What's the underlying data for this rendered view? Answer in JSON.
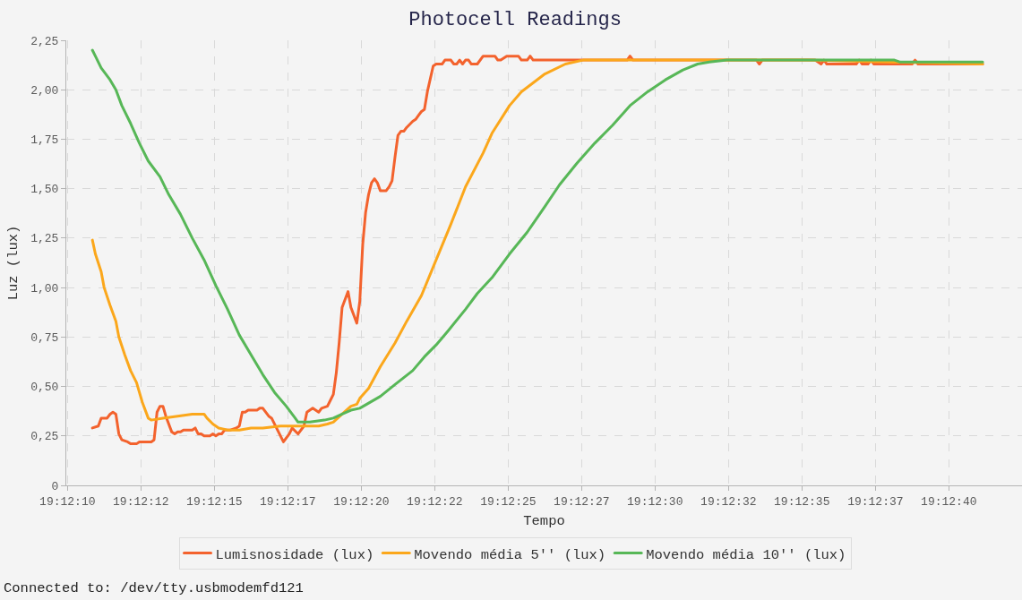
{
  "chart_data": {
    "type": "line",
    "title": "Photocell Readings",
    "xlabel": "Tempo",
    "ylabel": "Luz (lux)",
    "xlim": [
      19.202753,
      19.211789
    ],
    "xticks": [
      {
        "value": 19.202764,
        "label": "19:12:10"
      },
      {
        "value": 19.203458,
        "label": "19:12:12"
      },
      {
        "value": 19.204153,
        "label": "19:12:15"
      },
      {
        "value": 19.204847,
        "label": "19:12:17"
      },
      {
        "value": 19.205542,
        "label": "19:12:20"
      },
      {
        "value": 19.206236,
        "label": "19:12:22"
      },
      {
        "value": 19.206931,
        "label": "19:12:25"
      },
      {
        "value": 19.207625,
        "label": "19:12:27"
      },
      {
        "value": 19.208319,
        "label": "19:12:30"
      },
      {
        "value": 19.209014,
        "label": "19:12:32"
      },
      {
        "value": 19.209708,
        "label": "19:12:35"
      },
      {
        "value": 19.210403,
        "label": "19:12:37"
      },
      {
        "value": 19.211097,
        "label": "19:12:40"
      }
    ],
    "ylim": [
      0,
      2.25
    ],
    "yticks": [
      0,
      {
        "value": 0.25,
        "label": "0,25"
      },
      {
        "value": 0.5,
        "label": "0,50"
      },
      {
        "value": 0.75,
        "label": "0,75"
      },
      {
        "value": 1.0,
        "label": "1,00"
      },
      {
        "value": 1.25,
        "label": "1,25"
      },
      {
        "value": 1.5,
        "label": "1,50"
      },
      {
        "value": 1.75,
        "label": "1,75"
      },
      {
        "value": 2.0,
        "label": "2,00"
      },
      {
        "value": 2.25,
        "label": "2,25"
      }
    ],
    "grid": true,
    "legend": "bottom",
    "line_style": "solid",
    "annotations": [
      "Connected to: /dev/tty.usbmodemfd121"
    ],
    "series": [
      {
        "name": "Lumisnosidade (lux)",
        "color": "#f3622d",
        "x": [
          19.203,
          19.203056,
          19.203083,
          19.203139,
          19.203167,
          19.203194,
          19.203222,
          19.20325,
          19.203278,
          19.203333,
          19.203361,
          19.203417,
          19.203444,
          19.203556,
          19.203583,
          19.203611,
          19.203639,
          19.203667,
          19.203694,
          19.20375,
          19.203778,
          19.203806,
          19.203833,
          19.203861,
          19.203944,
          19.203972,
          19.204,
          19.204028,
          19.204056,
          19.204111,
          19.204139,
          19.204167,
          19.204194,
          19.204222,
          19.20425,
          19.204306,
          19.204361,
          19.204389,
          19.204417,
          19.204444,
          19.204472,
          19.204556,
          19.204583,
          19.204611,
          19.204667,
          19.204694,
          19.20475,
          19.204806,
          19.204861,
          19.204889,
          19.204944,
          19.205,
          19.205028,
          19.205083,
          19.205111,
          19.205139,
          19.205167,
          19.205222,
          19.20525,
          19.205278,
          19.205306,
          19.205333,
          19.205361,
          19.205417,
          19.205444,
          19.2055,
          19.205528,
          19.205556,
          19.205583,
          19.205611,
          19.205639,
          19.205667,
          19.205694,
          19.205722,
          19.205778,
          19.205806,
          19.205833,
          19.205861,
          19.205889,
          19.205917,
          19.205944,
          19.205972,
          19.206028,
          19.206056,
          19.206083,
          19.206111,
          19.206139,
          19.206167,
          19.206222,
          19.20625,
          19.206306,
          19.206333,
          19.206389,
          19.206417,
          19.206444,
          19.206472,
          19.2065,
          19.206528,
          19.206556,
          19.206583,
          19.206639,
          19.206694,
          19.206806,
          19.206833,
          19.206861,
          19.206917,
          19.207028,
          19.207056,
          19.207111,
          19.207139,
          19.207167,
          19.208056,
          19.208083,
          19.208111,
          19.209278,
          19.209306,
          19.209333,
          19.209833,
          19.209889,
          19.209917,
          19.209944,
          19.210222,
          19.21025,
          19.210278,
          19.210333,
          19.210361,
          19.210389,
          19.21075,
          19.210778,
          19.210806,
          19.211417
        ],
        "values": [
          0.29,
          0.3,
          0.34,
          0.34,
          0.36,
          0.37,
          0.36,
          0.26,
          0.23,
          0.22,
          0.21,
          0.21,
          0.22,
          0.22,
          0.23,
          0.37,
          0.4,
          0.4,
          0.35,
          0.27,
          0.26,
          0.27,
          0.27,
          0.28,
          0.28,
          0.29,
          0.26,
          0.26,
          0.25,
          0.25,
          0.26,
          0.25,
          0.26,
          0.26,
          0.28,
          0.28,
          0.29,
          0.3,
          0.37,
          0.37,
          0.38,
          0.38,
          0.39,
          0.39,
          0.35,
          0.34,
          0.28,
          0.22,
          0.26,
          0.29,
          0.26,
          0.3,
          0.37,
          0.39,
          0.38,
          0.37,
          0.39,
          0.4,
          0.43,
          0.46,
          0.57,
          0.72,
          0.9,
          0.98,
          0.9,
          0.82,
          0.93,
          1.22,
          1.38,
          1.47,
          1.53,
          1.55,
          1.53,
          1.49,
          1.49,
          1.51,
          1.54,
          1.66,
          1.77,
          1.79,
          1.79,
          1.81,
          1.84,
          1.85,
          1.87,
          1.89,
          1.9,
          1.99,
          2.12,
          2.13,
          2.13,
          2.15,
          2.15,
          2.13,
          2.13,
          2.15,
          2.13,
          2.15,
          2.15,
          2.13,
          2.13,
          2.17,
          2.17,
          2.15,
          2.15,
          2.17,
          2.17,
          2.15,
          2.15,
          2.17,
          2.15,
          2.15,
          2.17,
          2.15,
          2.15,
          2.13,
          2.15,
          2.15,
          2.13,
          2.15,
          2.13,
          2.13,
          2.15,
          2.13,
          2.13,
          2.15,
          2.13,
          2.13,
          2.15,
          2.13,
          2.13
        ]
      },
      {
        "name": "Movendo média 5'' (lux)",
        "color": "#fba71b",
        "x": [
          19.203,
          19.203028,
          19.203083,
          19.203111,
          19.203167,
          19.203222,
          19.20325,
          19.203306,
          19.203361,
          19.203417,
          19.203472,
          19.203528,
          19.203556,
          19.203667,
          19.203806,
          19.203944,
          19.204056,
          19.204083,
          19.204139,
          19.204194,
          19.204278,
          19.204389,
          19.2045,
          19.204611,
          19.204778,
          19.204944,
          19.205139,
          19.205222,
          19.205278,
          19.205361,
          19.205444,
          19.2055,
          19.205528,
          19.205611,
          19.205722,
          19.205861,
          19.205972,
          19.206111,
          19.20625,
          19.206389,
          19.206528,
          19.206694,
          19.206778,
          19.206944,
          19.207056,
          19.207278,
          19.207472,
          19.207639,
          19.20975,
          19.210528,
          19.211417
        ],
        "values": [
          1.24,
          1.17,
          1.08,
          1.0,
          0.91,
          0.83,
          0.75,
          0.66,
          0.58,
          0.52,
          0.42,
          0.34,
          0.33,
          0.34,
          0.35,
          0.36,
          0.36,
          0.34,
          0.31,
          0.29,
          0.28,
          0.28,
          0.29,
          0.29,
          0.3,
          0.3,
          0.3,
          0.31,
          0.32,
          0.36,
          0.4,
          0.41,
          0.44,
          0.49,
          0.6,
          0.72,
          0.83,
          0.96,
          1.14,
          1.32,
          1.51,
          1.68,
          1.78,
          1.92,
          1.99,
          2.08,
          2.13,
          2.15,
          2.15,
          2.14,
          2.13
        ]
      },
      {
        "name": "Movendo média 10'' (lux)",
        "color": "#57b757",
        "x": [
          19.203,
          19.203028,
          19.203083,
          19.203167,
          19.203222,
          19.203278,
          19.203361,
          19.203444,
          19.203528,
          19.203639,
          19.203722,
          19.203833,
          19.203944,
          19.204056,
          19.204167,
          19.204278,
          19.204389,
          19.2045,
          19.204611,
          19.204722,
          19.204833,
          19.204917,
          19.204944,
          19.205056,
          19.205194,
          19.205278,
          19.205361,
          19.205444,
          19.205528,
          19.205722,
          19.205861,
          19.206028,
          19.206139,
          19.20625,
          19.206361,
          19.206528,
          19.206639,
          19.206778,
          19.206944,
          19.207111,
          19.207278,
          19.207417,
          19.207583,
          19.20775,
          19.207917,
          19.208083,
          19.20825,
          19.208417,
          19.208583,
          19.208722,
          19.208833,
          19.209,
          19.210583,
          19.210639,
          19.211417
        ],
        "values": [
          2.2,
          2.17,
          2.11,
          2.05,
          2.0,
          1.92,
          1.83,
          1.73,
          1.64,
          1.56,
          1.47,
          1.37,
          1.25,
          1.14,
          1.01,
          0.89,
          0.76,
          0.66,
          0.56,
          0.47,
          0.4,
          0.34,
          0.32,
          0.32,
          0.33,
          0.34,
          0.36,
          0.38,
          0.39,
          0.45,
          0.51,
          0.58,
          0.65,
          0.71,
          0.78,
          0.89,
          0.97,
          1.05,
          1.17,
          1.28,
          1.41,
          1.52,
          1.63,
          1.73,
          1.82,
          1.92,
          1.99,
          2.05,
          2.1,
          2.13,
          2.14,
          2.15,
          2.15,
          2.14,
          2.14
        ]
      }
    ]
  }
}
